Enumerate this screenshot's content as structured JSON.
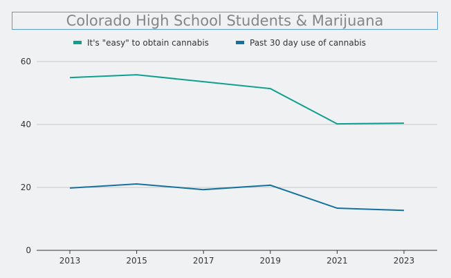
{
  "chart_data": {
    "type": "line",
    "title": "Colorado High School Students & Marijuana",
    "x": [
      2013,
      2015,
      2017,
      2019,
      2021,
      2023
    ],
    "xticks": [
      "2013",
      "2015",
      "2017",
      "2019",
      "2021",
      "2023"
    ],
    "yticks": [
      "0",
      "20",
      "40",
      "60"
    ],
    "ylim": [
      0,
      60
    ],
    "grid": true,
    "legend_position": "top",
    "series": [
      {
        "name": "It's \"easy\" to obtain cannabis",
        "color": "#0e9f8e",
        "values": [
          54.9,
          55.8,
          53.6,
          51.4,
          40.2,
          40.4
        ]
      },
      {
        "name": "Past 30 day use of cannabis",
        "color": "#14719f",
        "values": [
          19.8,
          21.1,
          19.3,
          20.7,
          13.4,
          12.7
        ]
      }
    ]
  }
}
